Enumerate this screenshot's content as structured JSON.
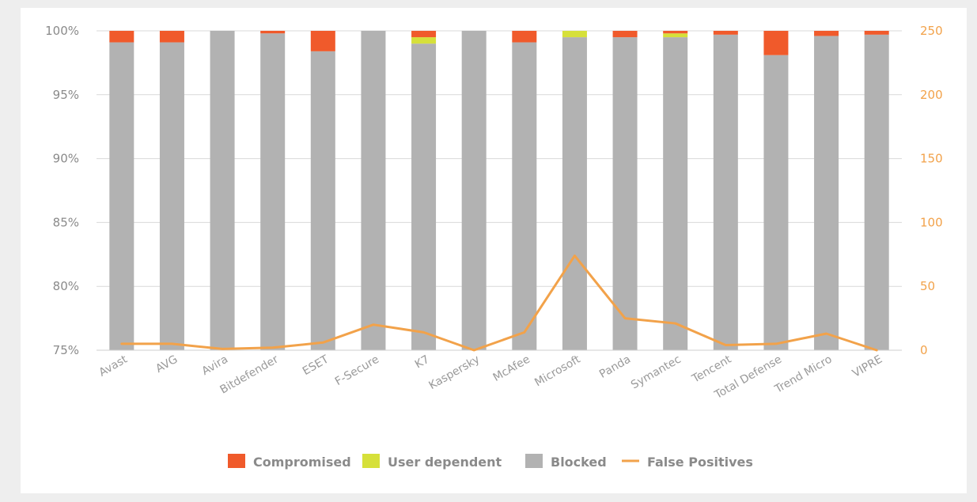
{
  "chart_data": {
    "type": "bar",
    "stacked": true,
    "categories": [
      "Avast",
      "AVG",
      "Avira",
      "Bitdefender",
      "ESET",
      "F-Secure",
      "K7",
      "Kaspersky",
      "McAfee",
      "Microsoft",
      "Panda",
      "Symantec",
      "Tencent",
      "Total Defense",
      "Trend Micro",
      "VIPRE"
    ],
    "series": [
      {
        "name": "Blocked",
        "color": "#b2b2b2",
        "values": [
          99.1,
          99.1,
          100,
          99.8,
          98.4,
          100,
          99.0,
          100,
          99.1,
          99.5,
          99.5,
          99.5,
          99.7,
          98.1,
          99.6,
          99.7
        ]
      },
      {
        "name": "User dependent",
        "color": "#d6e03a",
        "values": [
          0,
          0,
          0,
          0,
          0,
          0,
          0.5,
          0,
          0,
          0.5,
          0,
          0.3,
          0,
          0,
          0,
          0
        ]
      },
      {
        "name": "Compromised",
        "color": "#f05a2b",
        "values": [
          0.9,
          0.9,
          0,
          0.2,
          1.6,
          0,
          0.5,
          0,
          0.9,
          0,
          0.5,
          0.2,
          0.3,
          1.9,
          0.4,
          0.3
        ]
      }
    ],
    "line": {
      "name": "False Positives",
      "color": "#f2a24a",
      "axis": "right",
      "values": [
        5,
        5,
        1,
        2,
        6,
        20,
        14,
        0,
        14,
        74,
        25,
        21,
        4,
        5,
        13,
        0
      ]
    },
    "yleft": {
      "min": 75,
      "max": 100,
      "ticks": [
        "75%",
        "80%",
        "85%",
        "90%",
        "95%",
        "100%"
      ]
    },
    "yright": {
      "min": 0,
      "max": 250,
      "ticks": [
        "0",
        "50",
        "100",
        "150",
        "200",
        "250"
      ]
    },
    "legend": {
      "placement": "bottom",
      "items": [
        {
          "label": "Compromised",
          "color": "#f05a2b",
          "kind": "box"
        },
        {
          "label": "User dependent",
          "color": "#d6e03a",
          "kind": "box"
        },
        {
          "label": "Blocked",
          "color": "#b2b2b2",
          "kind": "box"
        },
        {
          "label": "False Positives",
          "color": "#f2a24a",
          "kind": "line"
        }
      ]
    },
    "grid": true
  }
}
